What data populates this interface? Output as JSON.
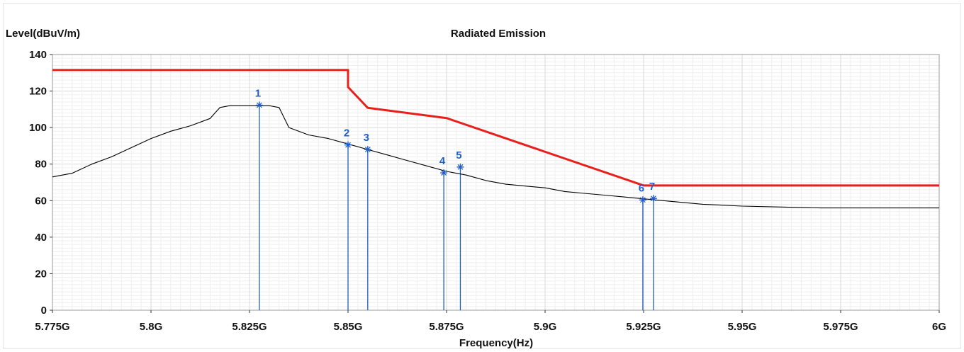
{
  "chart_data": {
    "type": "line",
    "title": "Radiated Emission",
    "ylabel": "Level(dBuV/m)",
    "xlabel": "Frequency(Hz)",
    "xlim": [
      5.775,
      6.0
    ],
    "ylim": [
      0,
      140
    ],
    "x_ticks": [
      5.775,
      5.8,
      5.825,
      5.85,
      5.875,
      5.9,
      5.925,
      5.95,
      5.975,
      6.0
    ],
    "x_tick_labels": [
      "5.775G",
      "5.8G",
      "5.825G",
      "5.85G",
      "5.875G",
      "5.9G",
      "5.925G",
      "5.95G",
      "5.975G",
      "6G"
    ],
    "y_ticks": [
      0,
      20,
      40,
      60,
      80,
      100,
      120,
      140
    ],
    "y_tick_labels": [
      "0",
      "20",
      "40",
      "60",
      "80",
      "100",
      "120",
      "140"
    ],
    "grid": true,
    "colors": {
      "limit": "#e8201c",
      "trace": "#000000",
      "marker": "#1f5fc8",
      "grid": "#d9d9d9",
      "frame": "#9a9a9a"
    },
    "series": [
      {
        "role": "limit",
        "x": [
          5.775,
          5.85,
          5.85,
          5.855,
          5.875,
          5.925,
          6.0
        ],
        "y": [
          131.5,
          131.5,
          122.2,
          110.8,
          105.2,
          68.3,
          68.3
        ]
      },
      {
        "role": "trace",
        "x": [
          5.775,
          5.78,
          5.785,
          5.79,
          5.795,
          5.8,
          5.805,
          5.81,
          5.815,
          5.8175,
          5.82,
          5.825,
          5.83,
          5.8325,
          5.835,
          5.84,
          5.845,
          5.85,
          5.855,
          5.86,
          5.865,
          5.87,
          5.875,
          5.88,
          5.885,
          5.89,
          5.895,
          5.9,
          5.905,
          5.91,
          5.915,
          5.92,
          5.925,
          5.93,
          5.94,
          5.95,
          5.96,
          5.97,
          5.98,
          5.99,
          6.0
        ],
        "y": [
          73,
          75,
          80,
          84,
          89,
          94,
          98,
          101,
          105,
          111,
          112,
          112,
          112,
          111,
          100,
          96,
          94,
          91,
          88,
          85,
          82,
          79,
          76,
          74,
          71,
          69,
          68,
          67,
          65,
          64,
          63,
          62,
          61,
          60,
          58,
          57,
          56.5,
          56,
          56,
          56,
          56
        ]
      }
    ],
    "markers": [
      {
        "label": "1",
        "x": 5.8275,
        "y": 112.3
      },
      {
        "label": "2",
        "x": 5.85,
        "y": 90.5
      },
      {
        "label": "3",
        "x": 5.855,
        "y": 88.0
      },
      {
        "label": "4",
        "x": 5.8743,
        "y": 75.2
      },
      {
        "label": "5",
        "x": 5.8785,
        "y": 78.4
      },
      {
        "label": "6",
        "x": 5.9248,
        "y": 60.4
      },
      {
        "label": "7",
        "x": 5.9275,
        "y": 61.2
      }
    ]
  }
}
